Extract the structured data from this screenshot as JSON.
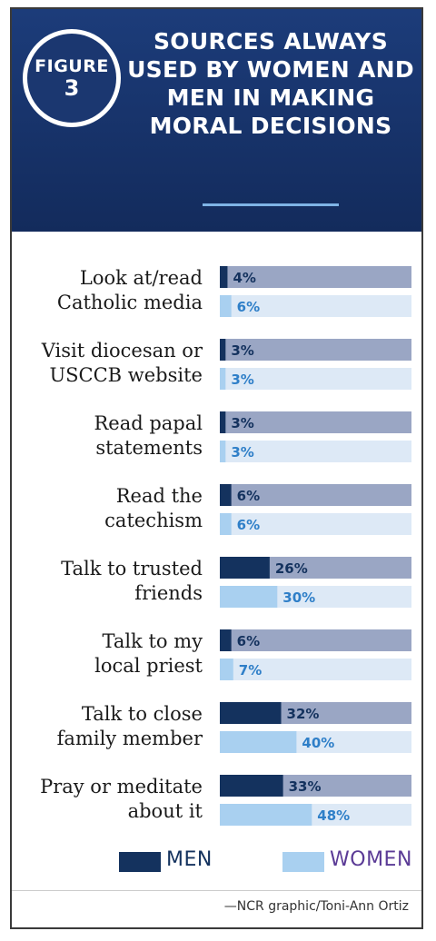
{
  "header": {
    "badge_word": "FIGURE",
    "badge_number": "3",
    "title": "SOURCES ALWAYS USED BY WOMEN AND MEN IN MAKING MORAL DECISIONS"
  },
  "chart_data": {
    "type": "bar",
    "orientation": "horizontal",
    "title": "SOURCES ALWAYS USED BY WOMEN AND MEN IN MAKING MORAL DECISIONS",
    "categories": [
      [
        "Look at/read",
        "Catholic media"
      ],
      [
        "Visit diocesan or",
        "USCCB website"
      ],
      [
        "Read papal",
        "statements"
      ],
      [
        "Read the",
        "catechism"
      ],
      [
        "Talk to trusted",
        "friends"
      ],
      [
        "Talk to my",
        "local priest"
      ],
      [
        "Talk to close",
        "family member"
      ],
      [
        "Pray or meditate",
        "about it"
      ]
    ],
    "series": [
      {
        "name": "MEN",
        "color": "#14325e",
        "values": [
          4,
          3,
          3,
          6,
          26,
          6,
          32,
          33
        ]
      },
      {
        "name": "WOMEN",
        "color": "#a9d0f0",
        "values": [
          6,
          3,
          3,
          6,
          30,
          7,
          40,
          48
        ]
      }
    ],
    "value_suffix": "%",
    "xlim": [
      0,
      100
    ],
    "legend": "bottom",
    "grid": false
  },
  "legend": {
    "men": "MEN",
    "women": "WOMEN"
  },
  "credit": "—NCR graphic/Toni-Ann Ortiz"
}
